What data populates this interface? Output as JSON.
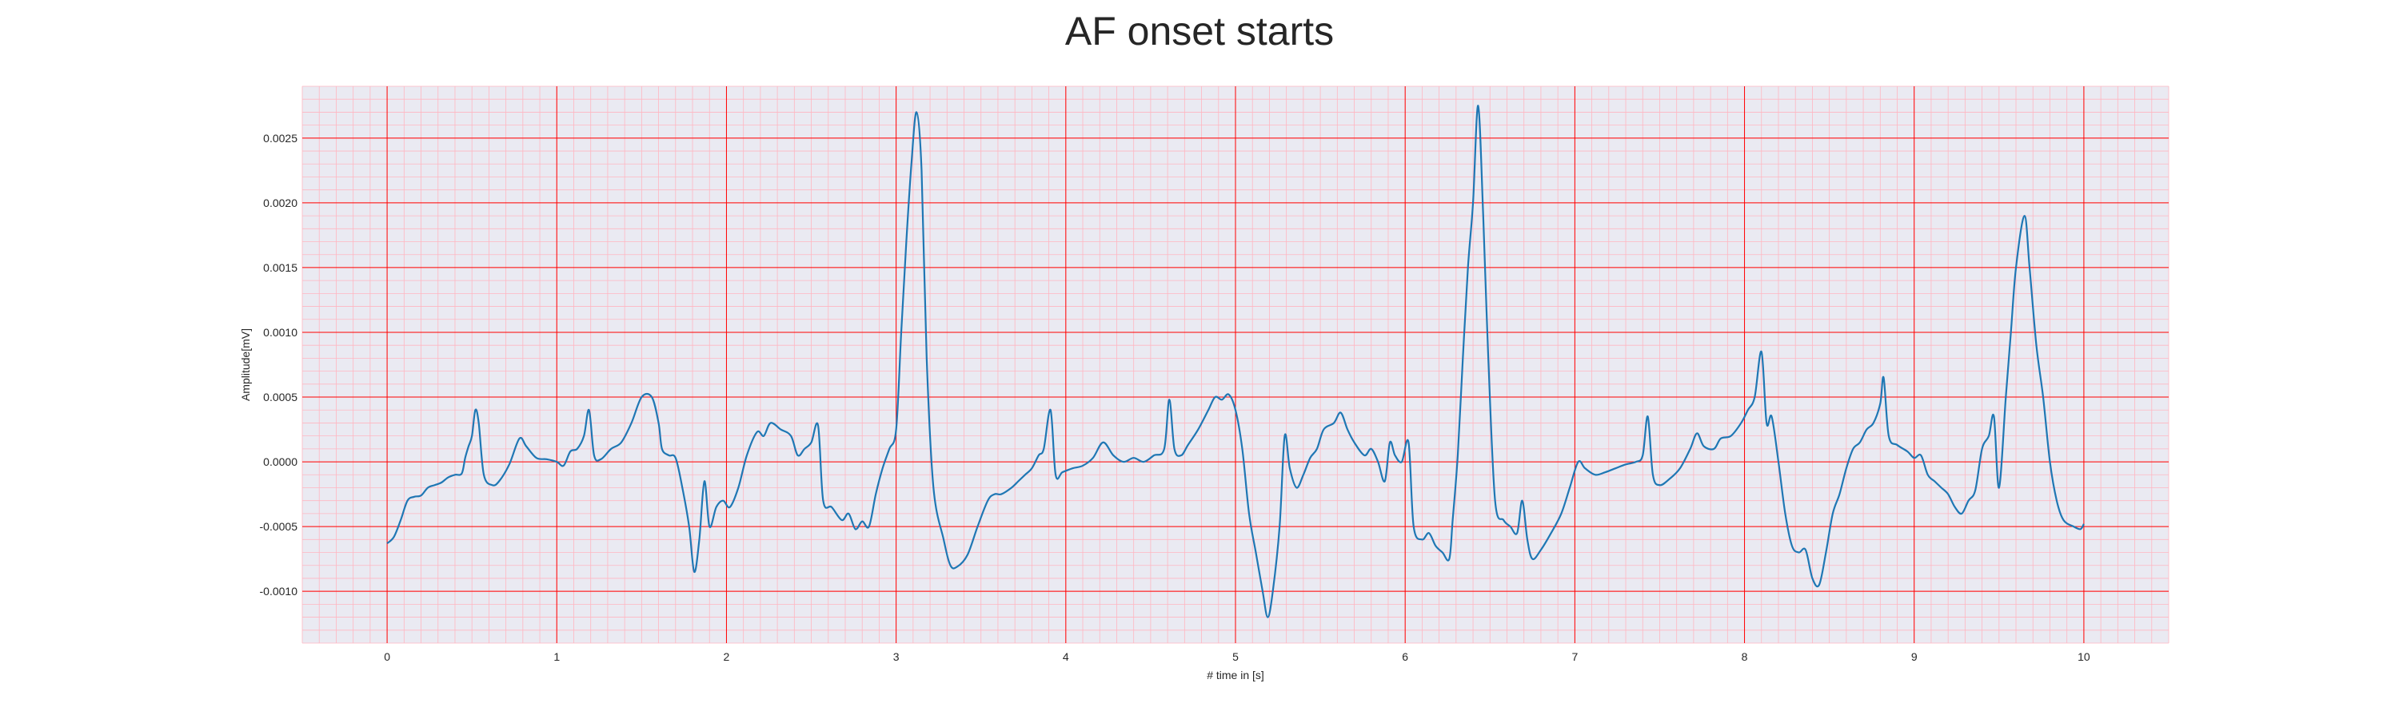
{
  "chart_data": {
    "type": "line",
    "title": "AF onset starts",
    "xlabel": "# time in [s]",
    "ylabel": "Amplitude[mV]",
    "xlim": [
      -0.5,
      10.5
    ],
    "ylim": [
      -0.0014,
      0.0029
    ],
    "xticks": [
      0,
      1,
      2,
      3,
      4,
      5,
      6,
      7,
      8,
      9,
      10
    ],
    "xtick_labels": [
      "0",
      "1",
      "2",
      "3",
      "4",
      "5",
      "6",
      "7",
      "8",
      "9",
      "10"
    ],
    "yticks": [
      -0.001,
      -0.0005,
      0.0,
      0.0005,
      0.001,
      0.0015,
      0.002,
      0.0025
    ],
    "ytick_labels": [
      "-0.0010",
      "-0.0005",
      "0.0000",
      "0.0005",
      "0.0010",
      "0.0015",
      "0.0020",
      "0.0025"
    ],
    "grid": true,
    "colors": {
      "background": "#eaeaf2",
      "major_grid": "#ff0000",
      "minor_grid": "#ffb6c1",
      "line": "#1f77b4"
    },
    "series": [
      {
        "values": [
          [
            0.0,
            -0.00063
          ],
          [
            0.04,
            -0.00058
          ],
          [
            0.08,
            -0.00045
          ],
          [
            0.12,
            -0.0003
          ],
          [
            0.16,
            -0.00027
          ],
          [
            0.2,
            -0.00026
          ],
          [
            0.24,
            -0.0002
          ],
          [
            0.28,
            -0.00018
          ],
          [
            0.32,
            -0.00016
          ],
          [
            0.36,
            -0.00012
          ],
          [
            0.4,
            -0.0001
          ],
          [
            0.44,
            -9e-05
          ],
          [
            0.46,
            3e-05
          ],
          [
            0.48,
            0.00012
          ],
          [
            0.5,
            0.0002
          ],
          [
            0.52,
            0.0004
          ],
          [
            0.54,
            0.0003
          ],
          [
            0.57,
            -0.0001
          ],
          [
            0.62,
            -0.00018
          ],
          [
            0.66,
            -0.00015
          ],
          [
            0.72,
            -2e-05
          ],
          [
            0.78,
            0.00018
          ],
          [
            0.82,
            0.00012
          ],
          [
            0.88,
            3e-05
          ],
          [
            0.94,
            2e-05
          ],
          [
            1.0,
            0.0
          ],
          [
            1.04,
            -3e-05
          ],
          [
            1.08,
            8e-05
          ],
          [
            1.12,
            0.0001
          ],
          [
            1.16,
            0.0002
          ],
          [
            1.19,
            0.0004
          ],
          [
            1.22,
            5e-05
          ],
          [
            1.26,
            2e-05
          ],
          [
            1.32,
            0.0001
          ],
          [
            1.38,
            0.00015
          ],
          [
            1.44,
            0.0003
          ],
          [
            1.5,
            0.0005
          ],
          [
            1.56,
            0.0005
          ],
          [
            1.6,
            0.0003
          ],
          [
            1.62,
            0.0001
          ],
          [
            1.66,
            5e-05
          ],
          [
            1.7,
            3e-05
          ],
          [
            1.74,
            -0.0002
          ],
          [
            1.78,
            -0.0005
          ],
          [
            1.81,
            -0.00085
          ],
          [
            1.84,
            -0.0006
          ],
          [
            1.87,
            -0.00015
          ],
          [
            1.9,
            -0.0005
          ],
          [
            1.94,
            -0.00035
          ],
          [
            1.98,
            -0.0003
          ],
          [
            2.02,
            -0.00035
          ],
          [
            2.07,
            -0.0002
          ],
          [
            2.12,
            5e-05
          ],
          [
            2.18,
            0.00023
          ],
          [
            2.22,
            0.0002
          ],
          [
            2.26,
            0.0003
          ],
          [
            2.32,
            0.00025
          ],
          [
            2.38,
            0.0002
          ],
          [
            2.42,
            5e-05
          ],
          [
            2.46,
            0.0001
          ],
          [
            2.5,
            0.00015
          ],
          [
            2.54,
            0.00028
          ],
          [
            2.57,
            -0.0003
          ],
          [
            2.62,
            -0.00035
          ],
          [
            2.68,
            -0.00045
          ],
          [
            2.72,
            -0.0004
          ],
          [
            2.76,
            -0.00052
          ],
          [
            2.8,
            -0.00046
          ],
          [
            2.84,
            -0.0005
          ],
          [
            2.88,
            -0.00025
          ],
          [
            2.92,
            -5e-05
          ],
          [
            2.96,
            0.0001
          ],
          [
            3.0,
            0.00025
          ],
          [
            3.03,
            0.001
          ],
          [
            3.06,
            0.0017
          ],
          [
            3.09,
            0.0023
          ],
          [
            3.12,
            0.0027
          ],
          [
            3.15,
            0.00225
          ],
          [
            3.18,
            0.0008
          ],
          [
            3.22,
            -0.0002
          ],
          [
            3.28,
            -0.0006
          ],
          [
            3.32,
            -0.0008
          ],
          [
            3.36,
            -0.00081
          ],
          [
            3.42,
            -0.00072
          ],
          [
            3.48,
            -0.0005
          ],
          [
            3.54,
            -0.0003
          ],
          [
            3.58,
            -0.00025
          ],
          [
            3.62,
            -0.00025
          ],
          [
            3.68,
            -0.0002
          ],
          [
            3.72,
            -0.00015
          ],
          [
            3.76,
            -0.0001
          ],
          [
            3.8,
            -5e-05
          ],
          [
            3.84,
            5e-05
          ],
          [
            3.87,
            0.0001
          ],
          [
            3.91,
            0.0004
          ],
          [
            3.94,
            -0.0001
          ],
          [
            3.98,
            -8e-05
          ],
          [
            4.04,
            -5e-05
          ],
          [
            4.1,
            -3e-05
          ],
          [
            4.16,
            3e-05
          ],
          [
            4.22,
            0.00015
          ],
          [
            4.28,
            5e-05
          ],
          [
            4.34,
            0.0
          ],
          [
            4.4,
            3e-05
          ],
          [
            4.46,
            0.0
          ],
          [
            4.52,
            5e-05
          ],
          [
            4.58,
            0.0001
          ],
          [
            4.61,
            0.00048
          ],
          [
            4.64,
            0.0001
          ],
          [
            4.68,
            5e-05
          ],
          [
            4.72,
            0.00013
          ],
          [
            4.78,
            0.00025
          ],
          [
            4.84,
            0.0004
          ],
          [
            4.88,
            0.0005
          ],
          [
            4.92,
            0.00048
          ],
          [
            4.96,
            0.00052
          ],
          [
            5.0,
            0.0004
          ],
          [
            5.04,
            0.0001
          ],
          [
            5.08,
            -0.0004
          ],
          [
            5.12,
            -0.0007
          ],
          [
            5.16,
            -0.001
          ],
          [
            5.19,
            -0.0012
          ],
          [
            5.22,
            -0.001
          ],
          [
            5.26,
            -0.0005
          ],
          [
            5.29,
            0.0002
          ],
          [
            5.32,
            -5e-05
          ],
          [
            5.36,
            -0.0002
          ],
          [
            5.4,
            -0.0001
          ],
          [
            5.44,
            3e-05
          ],
          [
            5.48,
            0.0001
          ],
          [
            5.52,
            0.00025
          ],
          [
            5.58,
            0.0003
          ],
          [
            5.62,
            0.00038
          ],
          [
            5.66,
            0.00025
          ],
          [
            5.7,
            0.00015
          ],
          [
            5.76,
            5e-05
          ],
          [
            5.8,
            0.0001
          ],
          [
            5.84,
            0.0
          ],
          [
            5.88,
            -0.00015
          ],
          [
            5.91,
            0.00015
          ],
          [
            5.94,
            5e-05
          ],
          [
            5.98,
            0.0
          ],
          [
            6.02,
            0.00015
          ],
          [
            6.05,
            -0.0005
          ],
          [
            6.1,
            -0.0006
          ],
          [
            6.14,
            -0.00055
          ],
          [
            6.18,
            -0.00065
          ],
          [
            6.22,
            -0.0007
          ],
          [
            6.26,
            -0.00075
          ],
          [
            6.28,
            -0.00045
          ],
          [
            6.31,
            5e-05
          ],
          [
            6.34,
            0.0008
          ],
          [
            6.37,
            0.0015
          ],
          [
            6.4,
            0.002
          ],
          [
            6.43,
            0.00275
          ],
          [
            6.46,
            0.0019
          ],
          [
            6.49,
            0.0008
          ],
          [
            6.53,
            -0.0003
          ],
          [
            6.58,
            -0.00045
          ],
          [
            6.62,
            -0.0005
          ],
          [
            6.66,
            -0.00055
          ],
          [
            6.69,
            -0.0003
          ],
          [
            6.72,
            -0.0006
          ],
          [
            6.75,
            -0.00075
          ],
          [
            6.8,
            -0.00068
          ],
          [
            6.86,
            -0.00055
          ],
          [
            6.92,
            -0.0004
          ],
          [
            6.97,
            -0.0002
          ],
          [
            7.02,
            0.0
          ],
          [
            7.06,
            -5e-05
          ],
          [
            7.12,
            -0.0001
          ],
          [
            7.18,
            -8e-05
          ],
          [
            7.24,
            -5e-05
          ],
          [
            7.3,
            -2e-05
          ],
          [
            7.36,
            0.0
          ],
          [
            7.4,
            5e-05
          ],
          [
            7.43,
            0.00035
          ],
          [
            7.46,
            -0.0001
          ],
          [
            7.5,
            -0.00018
          ],
          [
            7.56,
            -0.00013
          ],
          [
            7.62,
            -5e-05
          ],
          [
            7.68,
            0.0001
          ],
          [
            7.72,
            0.00022
          ],
          [
            7.76,
            0.00012
          ],
          [
            7.82,
            0.0001
          ],
          [
            7.86,
            0.00018
          ],
          [
            7.92,
            0.0002
          ],
          [
            7.98,
            0.0003
          ],
          [
            8.02,
            0.0004
          ],
          [
            8.06,
            0.0005
          ],
          [
            8.1,
            0.00085
          ],
          [
            8.13,
            0.0003
          ],
          [
            8.16,
            0.00035
          ],
          [
            8.2,
            0.0
          ],
          [
            8.24,
            -0.0004
          ],
          [
            8.28,
            -0.00065
          ],
          [
            8.32,
            -0.0007
          ],
          [
            8.36,
            -0.00068
          ],
          [
            8.4,
            -0.0009
          ],
          [
            8.44,
            -0.00095
          ],
          [
            8.48,
            -0.0007
          ],
          [
            8.52,
            -0.0004
          ],
          [
            8.56,
            -0.00025
          ],
          [
            8.6,
            -5e-05
          ],
          [
            8.64,
            0.0001
          ],
          [
            8.68,
            0.00015
          ],
          [
            8.72,
            0.00025
          ],
          [
            8.76,
            0.0003
          ],
          [
            8.8,
            0.00045
          ],
          [
            8.82,
            0.00065
          ],
          [
            8.85,
            0.0002
          ],
          [
            8.9,
            0.00013
          ],
          [
            8.96,
            8e-05
          ],
          [
            9.0,
            3e-05
          ],
          [
            9.04,
            5e-05
          ],
          [
            9.08,
            -0.0001
          ],
          [
            9.12,
            -0.00015
          ],
          [
            9.16,
            -0.0002
          ],
          [
            9.2,
            -0.00025
          ],
          [
            9.24,
            -0.00035
          ],
          [
            9.28,
            -0.0004
          ],
          [
            9.32,
            -0.0003
          ],
          [
            9.36,
            -0.00022
          ],
          [
            9.4,
            0.0001
          ],
          [
            9.44,
            0.0002
          ],
          [
            9.47,
            0.00035
          ],
          [
            9.5,
            -0.0002
          ],
          [
            9.54,
            0.0005
          ],
          [
            9.57,
            0.001
          ],
          [
            9.6,
            0.0015
          ],
          [
            9.65,
            0.0019
          ],
          [
            9.68,
            0.0015
          ],
          [
            9.72,
            0.0009
          ],
          [
            9.76,
            0.0005
          ],
          [
            9.8,
            0.0
          ],
          [
            9.84,
            -0.0003
          ],
          [
            9.88,
            -0.00045
          ],
          [
            9.94,
            -0.0005
          ],
          [
            9.98,
            -0.00052
          ],
          [
            10.0,
            -0.00048
          ]
        ]
      }
    ]
  }
}
